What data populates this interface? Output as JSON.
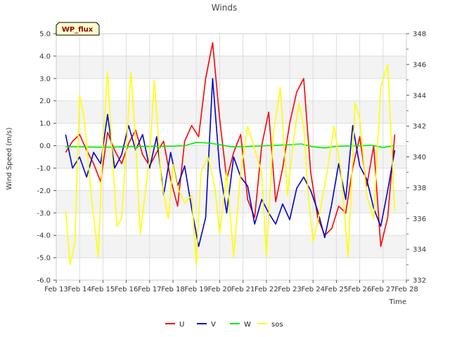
{
  "chart_data": {
    "type": "line",
    "title": "Winds",
    "badge": "WP_flux",
    "xlabel": "Time",
    "ylabel": "Wind Speed (m/s)",
    "ylim": [
      -6.0,
      5.0
    ],
    "y2lim": [
      332,
      348
    ],
    "yticks": [
      "5.0",
      "4.0",
      "3.0",
      "2.0",
      "1.0",
      "0.0",
      "-1.0",
      "-2.0",
      "-3.0",
      "-4.0",
      "-5.0",
      "-6.0"
    ],
    "y2ticks": [
      "348",
      "346",
      "344",
      "342",
      "340",
      "338",
      "336",
      "334",
      "332"
    ],
    "xlim": [
      13,
      28
    ],
    "xticks": [
      "Feb 13",
      "Feb 14",
      "Feb 15",
      "Feb 16",
      "Feb 17",
      "Feb 18",
      "Feb 19",
      "Feb 20",
      "Feb 21",
      "Feb 22",
      "Feb 23",
      "Feb 24",
      "Feb 25",
      "Feb 26",
      "Feb 27",
      "Feb 28"
    ],
    "series": [
      {
        "name": "U",
        "axis": "left",
        "color": "#ff0000",
        "x": [
          13.4,
          13.7,
          14.0,
          14.3,
          14.6,
          14.9,
          15.2,
          15.5,
          15.8,
          16.1,
          16.4,
          16.7,
          17.0,
          17.3,
          17.6,
          17.9,
          18.2,
          18.5,
          18.8,
          19.1,
          19.4,
          19.7,
          20.0,
          20.3,
          20.6,
          20.9,
          21.2,
          21.5,
          21.8,
          22.1,
          22.4,
          22.7,
          23.0,
          23.3,
          23.6,
          23.9,
          24.2,
          24.5,
          24.8,
          25.1,
          25.4,
          25.7,
          26.0,
          26.3,
          26.6,
          26.9,
          27.2,
          27.5
        ],
        "y": [
          -0.3,
          0.2,
          0.5,
          -0.2,
          -0.8,
          -1.6,
          0.6,
          -0.2,
          -0.8,
          0.1,
          0.7,
          -0.4,
          -0.9,
          -0.3,
          0.2,
          -1.5,
          -2.7,
          0.2,
          0.9,
          0.4,
          3.0,
          4.6,
          1.2,
          -1.5,
          -0.3,
          0.5,
          -2.4,
          -3.2,
          0.0,
          1.5,
          -2.5,
          -1.0,
          1.0,
          2.4,
          3.0,
          -1.2,
          -3.2,
          -4.0,
          -3.7,
          -2.7,
          -3.0,
          -1.0,
          0.4,
          -1.8,
          0.0,
          -4.5,
          -3.2,
          0.5
        ]
      },
      {
        "name": "V",
        "axis": "left",
        "color": "#0000cc",
        "x": [
          13.4,
          13.7,
          14.0,
          14.3,
          14.6,
          14.9,
          15.2,
          15.5,
          15.8,
          16.1,
          16.4,
          16.7,
          17.0,
          17.3,
          17.6,
          17.9,
          18.2,
          18.5,
          18.8,
          19.1,
          19.4,
          19.7,
          20.0,
          20.3,
          20.6,
          20.9,
          21.2,
          21.5,
          21.8,
          22.1,
          22.4,
          22.7,
          23.0,
          23.3,
          23.6,
          23.9,
          24.2,
          24.5,
          24.8,
          25.1,
          25.4,
          25.7,
          26.0,
          26.3,
          26.6,
          26.9,
          27.2,
          27.5
        ],
        "y": [
          0.5,
          -1.0,
          -0.5,
          -1.4,
          -0.3,
          -0.8,
          1.4,
          -1.0,
          -0.4,
          0.9,
          -0.2,
          0.5,
          -1.0,
          0.4,
          -2.2,
          -0.3,
          -1.8,
          -0.9,
          -2.8,
          -4.5,
          -3.2,
          3.0,
          -1.0,
          -3.0,
          -0.5,
          -1.4,
          -1.8,
          -3.5,
          -2.4,
          -3.0,
          -3.5,
          -2.6,
          -3.3,
          -1.9,
          -1.4,
          -2.0,
          -2.9,
          -4.1,
          -2.6,
          -0.8,
          -2.4,
          0.9,
          -0.9,
          -1.5,
          -2.8,
          -3.6,
          -2.0,
          -0.2
        ]
      },
      {
        "name": "W",
        "axis": "left",
        "color": "#00ee00",
        "x": [
          13.4,
          14.0,
          15.0,
          16.0,
          17.0,
          18.0,
          18.5,
          19.0,
          19.5,
          20.0,
          20.5,
          21.0,
          22.0,
          23.0,
          23.5,
          24.0,
          24.5,
          25.0,
          26.0,
          26.5,
          27.0,
          27.5
        ],
        "y": [
          -0.05,
          -0.05,
          -0.07,
          -0.05,
          -0.03,
          -0.02,
          0.0,
          0.15,
          0.12,
          0.05,
          -0.05,
          -0.05,
          0.0,
          0.05,
          0.08,
          -0.05,
          -0.1,
          -0.03,
          0.0,
          0.02,
          -0.08,
          0.0
        ]
      },
      {
        "name": "sos",
        "axis": "right",
        "color": "#ffff00",
        "x": [
          13.4,
          13.6,
          13.8,
          14.0,
          14.2,
          14.5,
          14.8,
          15.0,
          15.2,
          15.4,
          15.6,
          15.8,
          16.0,
          16.2,
          16.4,
          16.6,
          16.8,
          17.0,
          17.2,
          17.5,
          17.8,
          18.0,
          18.2,
          18.5,
          18.8,
          19.0,
          19.2,
          19.5,
          19.8,
          20.0,
          20.3,
          20.6,
          20.9,
          21.2,
          21.5,
          21.8,
          22.0,
          22.3,
          22.6,
          22.9,
          23.2,
          23.4,
          23.6,
          23.8,
          24.0,
          24.3,
          24.6,
          24.9,
          25.2,
          25.5,
          25.8,
          26.0,
          26.3,
          26.6,
          26.9,
          27.2,
          27.5
        ],
        "y": [
          336.5,
          333.0,
          334.5,
          344.0,
          342.5,
          337.5,
          333.5,
          341.0,
          345.5,
          340.0,
          335.5,
          336.0,
          340.5,
          345.5,
          341.0,
          335.0,
          337.5,
          340.0,
          345.0,
          338.5,
          336.0,
          339.5,
          338.0,
          337.0,
          337.5,
          333.0,
          339.0,
          340.0,
          338.0,
          335.0,
          339.0,
          333.5,
          339.0,
          342.0,
          340.5,
          339.0,
          333.5,
          341.5,
          344.5,
          337.5,
          341.5,
          343.5,
          342.0,
          337.5,
          334.5,
          336.5,
          339.0,
          342.0,
          339.0,
          333.5,
          343.5,
          342.5,
          337.5,
          336.0,
          344.5,
          346.0,
          336.5
        ]
      }
    ]
  }
}
